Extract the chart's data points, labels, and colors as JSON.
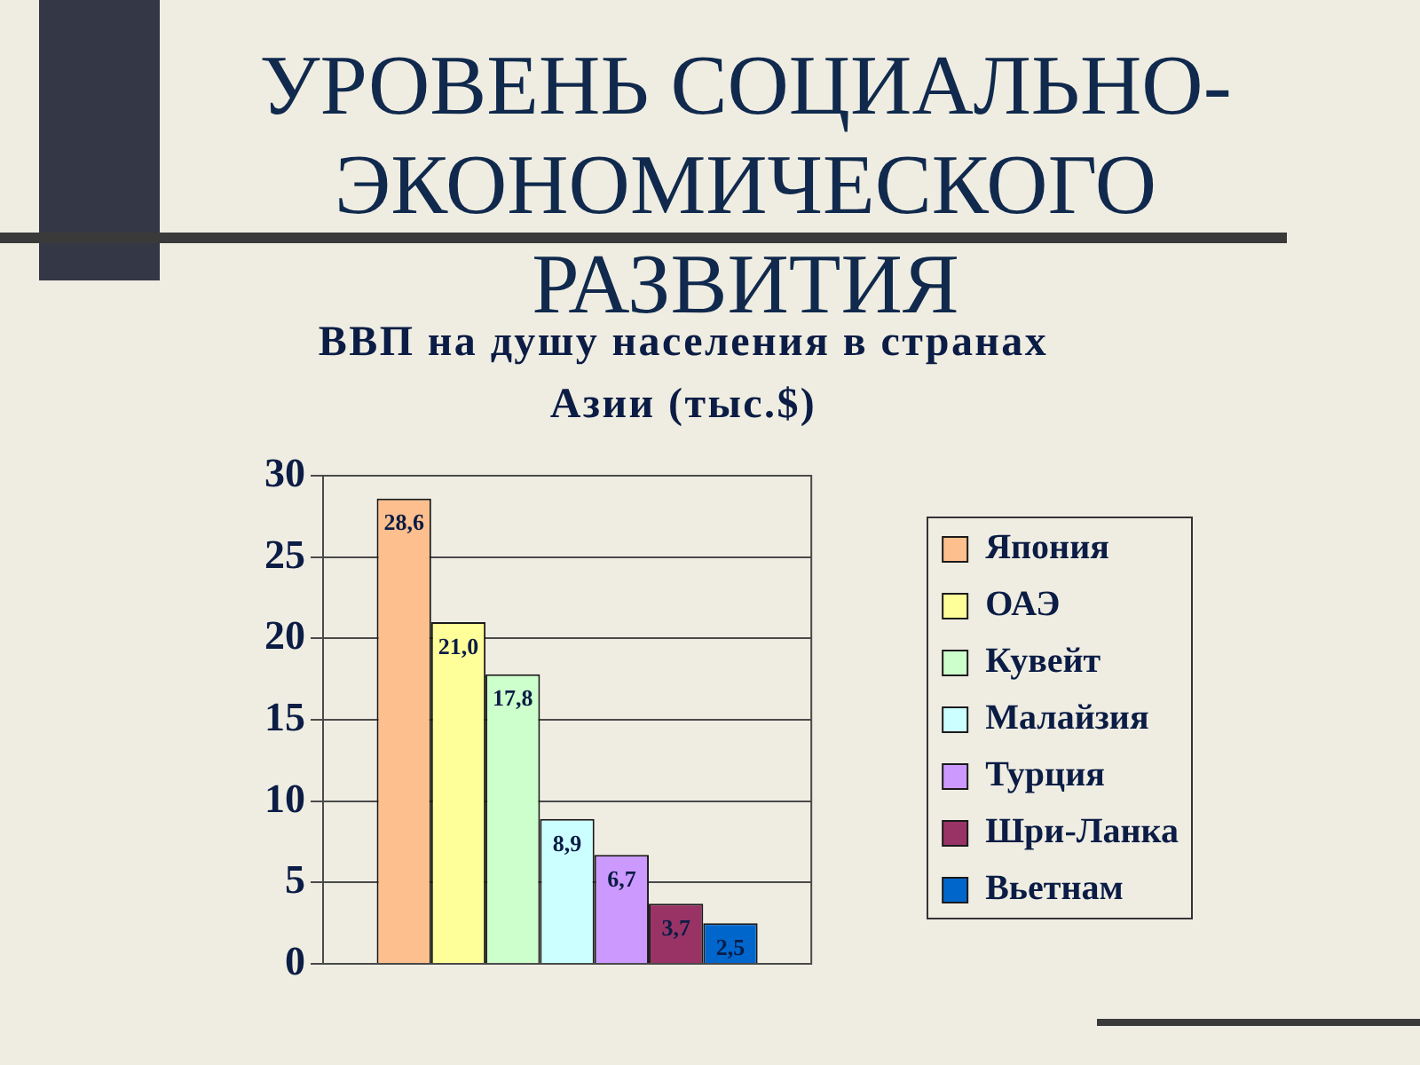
{
  "chart_data": {
    "type": "bar",
    "title": "УРОВЕНЬ СОЦИАЛЬНО-ЭКОНОМИЧЕСКОГО РАЗВИТИЯ",
    "subtitle": "ВВП на душу населения в странах Азии (тыс.$)",
    "categories": [
      null
    ],
    "series": [
      {
        "name": "Япония",
        "color": "#fdbf8d",
        "values": [
          28.6
        ],
        "value_labels": [
          "28,6"
        ]
      },
      {
        "name": "ОАЭ",
        "color": "#ffff99",
        "values": [
          21.0
        ],
        "value_labels": [
          "21,0"
        ]
      },
      {
        "name": "Кувейт",
        "color": "#ccffcc",
        "values": [
          17.8
        ],
        "value_labels": [
          "17,8"
        ]
      },
      {
        "name": "Малайзия",
        "color": "#ccffff",
        "values": [
          8.9
        ],
        "value_labels": [
          "8,9"
        ]
      },
      {
        "name": "Турция",
        "color": "#cc99ff",
        "values": [
          6.7
        ],
        "value_labels": [
          "6,7"
        ]
      },
      {
        "name": "Шри-Ланка",
        "color": "#993366",
        "values": [
          3.7
        ],
        "value_labels": [
          "3,7"
        ]
      },
      {
        "name": "Вьетнам",
        "color": "#0066cc",
        "values": [
          2.5
        ],
        "value_labels": [
          "2,5"
        ]
      }
    ],
    "ylim": [
      0,
      30
    ],
    "yticks": [
      0,
      5,
      10,
      15,
      20,
      25,
      30
    ],
    "grid": "y",
    "legend": "right"
  }
}
